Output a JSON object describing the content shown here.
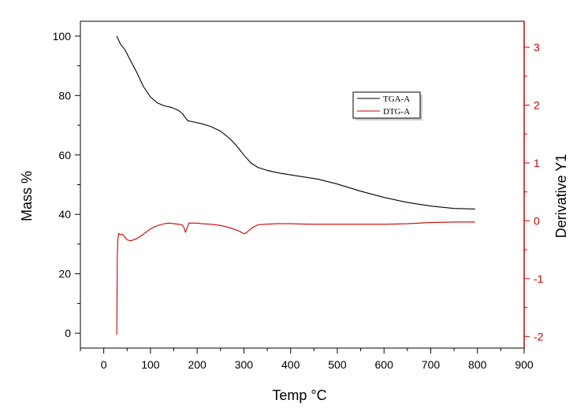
{
  "chart_data": {
    "type": "line",
    "title": "",
    "xlabel": "Temp °C",
    "ylabel_left": "Mass %",
    "ylabel_right": "Derivative Y1",
    "xlim": [
      -50,
      900
    ],
    "ylim_left": [
      -5,
      105
    ],
    "ylim_right": [
      -2.2,
      3.45
    ],
    "x_ticks": [
      0,
      100,
      200,
      300,
      400,
      500,
      600,
      700,
      800,
      900
    ],
    "y_left_ticks": [
      0,
      20,
      40,
      60,
      80,
      100
    ],
    "y_right_ticks": [
      -2,
      -1,
      0,
      1,
      2,
      3
    ],
    "grid": false,
    "legend_position": "top-right",
    "colors": {
      "axis_left": "#000000",
      "axis_right": "#cc0000"
    },
    "series": [
      {
        "name": "TGA-A",
        "axis": "left",
        "color": "#000000",
        "x": [
          28,
          35,
          45,
          55,
          70,
          85,
          100,
          115,
          130,
          145,
          160,
          168,
          175,
          180,
          190,
          210,
          230,
          250,
          270,
          285,
          300,
          315,
          330,
          350,
          380,
          420,
          460,
          500,
          550,
          600,
          650,
          700,
          750,
          795
        ],
        "y": [
          100,
          97.5,
          95.5,
          92.5,
          88,
          83,
          79.5,
          77.5,
          76.5,
          76,
          75,
          74,
          72.5,
          71.5,
          71.2,
          70.5,
          69.5,
          68,
          65.5,
          63,
          60,
          57.3,
          55.8,
          54.8,
          53.8,
          52.8,
          51.8,
          50.2,
          47.8,
          45.7,
          44,
          42.8,
          42,
          41.8
        ]
      },
      {
        "name": "DTG-A",
        "axis": "right",
        "color": "#cc0000",
        "x": [
          28,
          29,
          30,
          32,
          35,
          40,
          45,
          50,
          55,
          60,
          70,
          80,
          90,
          100,
          110,
          120,
          130,
          140,
          150,
          160,
          168,
          172,
          175,
          178,
          182,
          190,
          200,
          210,
          230,
          250,
          270,
          290,
          300,
          305,
          310,
          320,
          330,
          345,
          370,
          400,
          450,
          500,
          550,
          600,
          650,
          700,
          750,
          795
        ],
        "y": [
          -1.97,
          -0.6,
          -0.35,
          -0.22,
          -0.24,
          -0.23,
          -0.28,
          -0.33,
          -0.34,
          -0.34,
          -0.31,
          -0.26,
          -0.2,
          -0.14,
          -0.1,
          -0.07,
          -0.05,
          -0.04,
          -0.05,
          -0.06,
          -0.07,
          -0.12,
          -0.2,
          -0.14,
          -0.04,
          -0.04,
          -0.04,
          -0.05,
          -0.06,
          -0.08,
          -0.12,
          -0.18,
          -0.22,
          -0.21,
          -0.17,
          -0.11,
          -0.07,
          -0.06,
          -0.05,
          -0.05,
          -0.06,
          -0.06,
          -0.06,
          -0.06,
          -0.05,
          -0.03,
          -0.02,
          -0.02
        ]
      }
    ]
  }
}
